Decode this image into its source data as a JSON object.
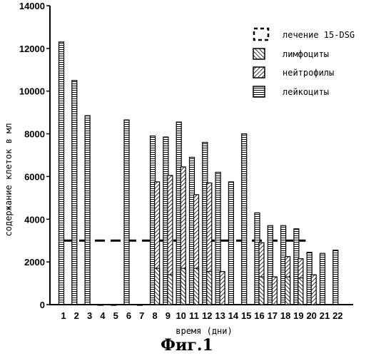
{
  "chart_data": {
    "type": "bar",
    "xlabel": "время (дни)",
    "ylabel": "содержание клеток в мл",
    "ylim": [
      0,
      14000
    ],
    "yticks": [
      "0",
      "2000",
      "4000",
      "6000",
      "8000",
      "10000",
      "12000",
      "14000"
    ],
    "categories": [
      "1",
      "2",
      "3",
      "4",
      "5",
      "6",
      "7",
      "8",
      "9",
      "10",
      "11",
      "12",
      "13",
      "14",
      "15",
      "16",
      "17",
      "18",
      "19",
      "20",
      "21",
      "22"
    ],
    "series": [
      {
        "name": "лейкоциты",
        "values": [
          12300,
          10500,
          8850,
          0,
          0,
          8650,
          0,
          7900,
          7850,
          8550,
          6900,
          7600,
          6200,
          5750,
          8000,
          4300,
          3700,
          3700,
          3550,
          2450,
          2400,
          2550
        ]
      },
      {
        "name": "нейтрофилы",
        "values": [
          null,
          null,
          null,
          null,
          null,
          null,
          null,
          5750,
          6050,
          6450,
          5150,
          5700,
          1550,
          null,
          null,
          2900,
          1300,
          2250,
          2150,
          1400,
          null,
          null
        ]
      },
      {
        "name": "лимфоциты",
        "values": [
          null,
          null,
          null,
          null,
          null,
          null,
          null,
          1700,
          1400,
          1700,
          1700,
          1550,
          null,
          null,
          null,
          1300,
          null,
          1300,
          1250,
          null,
          null,
          null
        ]
      }
    ],
    "treatment": {
      "name": "лечение 15-DSG",
      "level": 3000,
      "days": [
        "1",
        "2",
        "3",
        "4",
        "5",
        "6",
        "7",
        "8",
        "9",
        "10",
        "11",
        "12",
        "13",
        "14",
        "15",
        "16",
        "17",
        "18",
        "19"
      ]
    },
    "legend": {
      "position": "top-right",
      "entries": [
        "лечение 15-DSG",
        "лимфоциты",
        "нейтрофилы",
        "лейкоциты"
      ]
    },
    "grid": false
  },
  "caption": "Фиг.1"
}
